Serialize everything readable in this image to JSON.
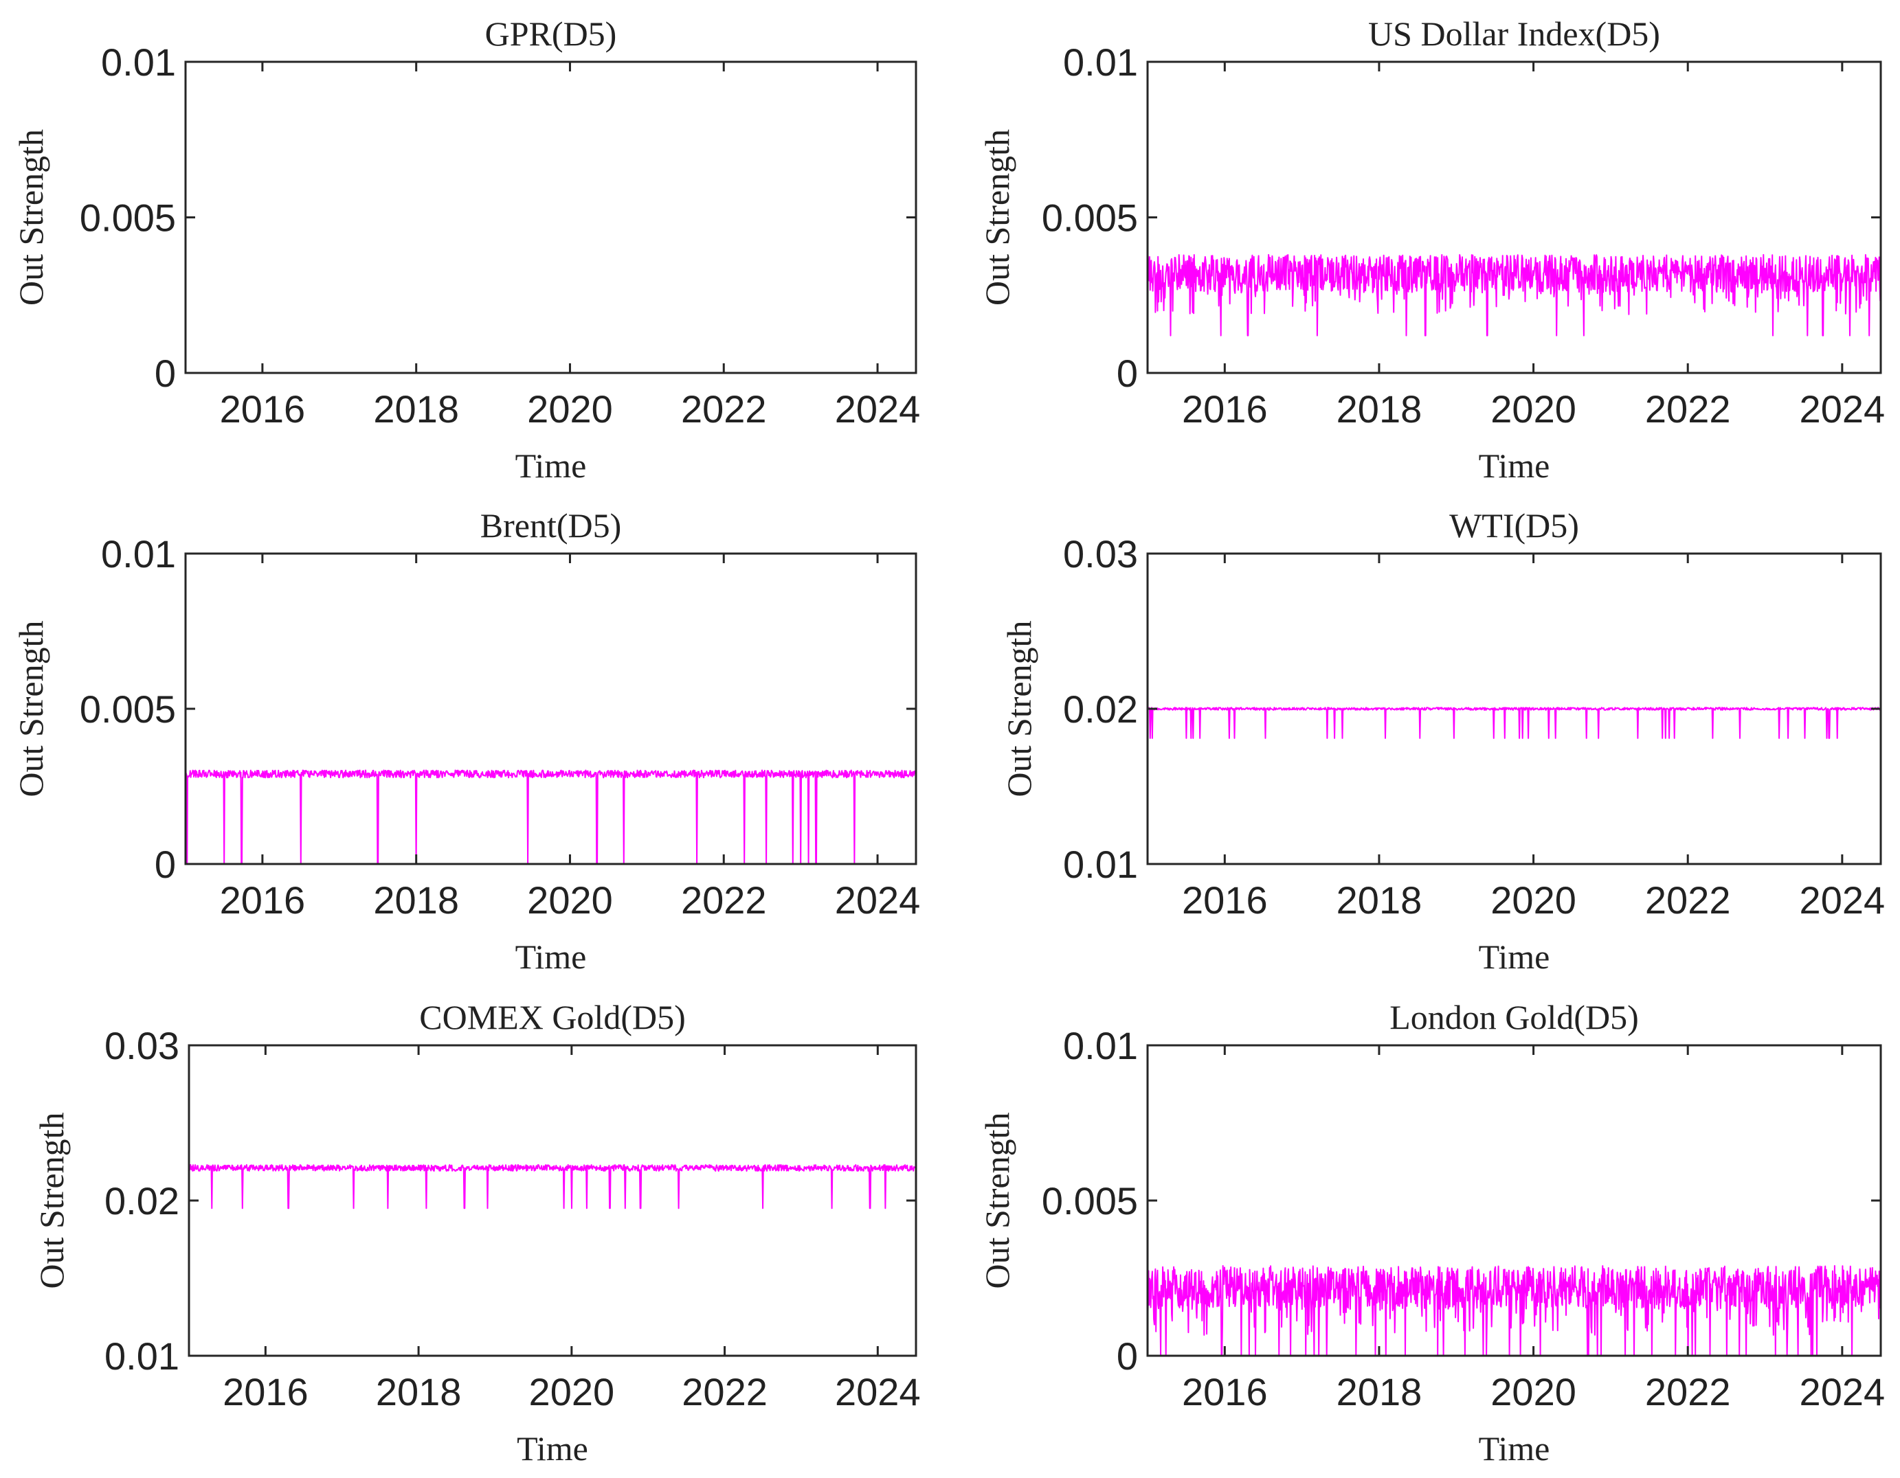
{
  "figure": {
    "line_color": "#ff00ff",
    "axis_color": "#262626",
    "background": "#ffffff"
  },
  "chart_data": [
    {
      "id": "gpr",
      "type": "line",
      "title": "GPR(D5)",
      "xlabel": "Time",
      "ylabel": "Out Strength",
      "xlim": [
        2015.0,
        2024.5
      ],
      "ylim": [
        0,
        0.01
      ],
      "xticks": [
        2016,
        2018,
        2020,
        2022,
        2024
      ],
      "xtick_labels": [
        "2016",
        "2018",
        "2020",
        "2022",
        "2024"
      ],
      "yticks": [
        0,
        0.005,
        0.01
      ],
      "ytick_labels": [
        "0",
        "0.005",
        "0.01"
      ],
      "series": [
        {
          "name": "GPR",
          "x_range": [
            2015.0,
            2024.5
          ],
          "mean": 0.0,
          "noise": 0.0,
          "dips": []
        }
      ]
    },
    {
      "id": "usd",
      "type": "line",
      "title": "US Dollar Index(D5)",
      "xlabel": "Time",
      "ylabel": "Out Strength",
      "xlim": [
        2015.0,
        2024.5
      ],
      "ylim": [
        0,
        0.01
      ],
      "xticks": [
        2016,
        2018,
        2020,
        2022,
        2024
      ],
      "xtick_labels": [
        "2016",
        "2018",
        "2020",
        "2022",
        "2024"
      ],
      "yticks": [
        0,
        0.005,
        0.01
      ],
      "ytick_labels": [
        "0",
        "0.005",
        "0.01"
      ],
      "series": [
        {
          "name": "US Dollar Index",
          "x_range": [
            2015.0,
            2024.5
          ],
          "mean": 0.0032,
          "noise": 0.0006,
          "dip_level": 0.0012,
          "dips": [
            2015.3,
            2015.95,
            2016.3,
            2017.2,
            2018.35,
            2018.6,
            2019.4,
            2020.3,
            2020.65,
            2023.1,
            2023.55,
            2023.75,
            2024.1,
            2024.35
          ]
        }
      ]
    },
    {
      "id": "brent",
      "type": "line",
      "title": "Brent(D5)",
      "xlabel": "Time",
      "ylabel": "Out Strength",
      "xlim": [
        2015.0,
        2024.5
      ],
      "ylim": [
        0,
        0.01
      ],
      "xticks": [
        2016,
        2018,
        2020,
        2022,
        2024
      ],
      "xtick_labels": [
        "2016",
        "2018",
        "2020",
        "2022",
        "2024"
      ],
      "yticks": [
        0,
        0.005,
        0.01
      ],
      "ytick_labels": [
        "0",
        "0.005",
        "0.01"
      ],
      "series": [
        {
          "name": "Brent",
          "x_range": [
            2015.0,
            2024.5
          ],
          "mean": 0.0029,
          "noise": 0.00012,
          "dip_level": 0.0,
          "dips": [
            2015.02,
            2015.5,
            2015.73,
            2016.5,
            2017.5,
            2018.0,
            2019.45,
            2020.35,
            2020.7,
            2021.65,
            2022.27,
            2022.55,
            2022.9,
            2023.0,
            2023.1,
            2023.2,
            2023.7
          ]
        }
      ]
    },
    {
      "id": "wti",
      "type": "line",
      "title": "WTI(D5)",
      "xlabel": "Time",
      "ylabel": "Out Strength",
      "xlim": [
        2015.0,
        2024.5
      ],
      "ylim": [
        0.01,
        0.03
      ],
      "xticks": [
        2016,
        2018,
        2020,
        2022,
        2024
      ],
      "xtick_labels": [
        "2016",
        "2018",
        "2020",
        "2022",
        "2024"
      ],
      "yticks": [
        0.01,
        0.02,
        0.03
      ],
      "ytick_labels": [
        "0.01",
        "0.02",
        "0.03"
      ],
      "series": [
        {
          "name": "WTI",
          "x_range": [
            2015.0,
            2024.5
          ],
          "mean": 0.02,
          "noise": 8e-05,
          "dip_level": 0.0181,
          "dip_rate": 0.035
        }
      ]
    },
    {
      "id": "comex",
      "type": "line",
      "title": "COMEX Gold(D5)",
      "xlabel": "Time",
      "ylabel": "Out Strength",
      "xlim": [
        2015.0,
        2024.5
      ],
      "ylim": [
        0.01,
        0.03
      ],
      "xticks": [
        2016,
        2018,
        2020,
        2022,
        2024
      ],
      "xtick_labels": [
        "2016",
        "2018",
        "2020",
        "2022",
        "2024"
      ],
      "yticks": [
        0.01,
        0.02,
        0.03
      ],
      "ytick_labels": [
        "0.01",
        "0.02",
        "0.03"
      ],
      "series": [
        {
          "name": "COMEX Gold",
          "x_range": [
            2015.0,
            2024.5
          ],
          "mean": 0.0221,
          "noise": 0.0002,
          "dip_level": 0.0195,
          "dips": [
            2015.3,
            2015.7,
            2016.3,
            2017.15,
            2017.6,
            2018.1,
            2018.6,
            2018.9,
            2019.9,
            2020.0,
            2020.2,
            2020.5,
            2020.7,
            2020.9,
            2021.4,
            2022.5,
            2023.4,
            2023.9,
            2024.1
          ]
        }
      ]
    },
    {
      "id": "london",
      "type": "line",
      "title": "London Gold(D5)",
      "xlabel": "Time",
      "ylabel": "Out Strength",
      "xlim": [
        2015.0,
        2024.5
      ],
      "ylim": [
        0,
        0.01
      ],
      "xticks": [
        2016,
        2018,
        2020,
        2022,
        2024
      ],
      "xtick_labels": [
        "2016",
        "2018",
        "2020",
        "2022",
        "2024"
      ],
      "yticks": [
        0,
        0.005,
        0.01
      ],
      "ytick_labels": [
        "0",
        "0.005",
        "0.01"
      ],
      "series": [
        {
          "name": "London Gold",
          "x_range": [
            2015.0,
            2024.5
          ],
          "mean": 0.0022,
          "noise": 0.0007,
          "dip_level": 0.0,
          "dip_rate": 0.03
        }
      ]
    }
  ]
}
